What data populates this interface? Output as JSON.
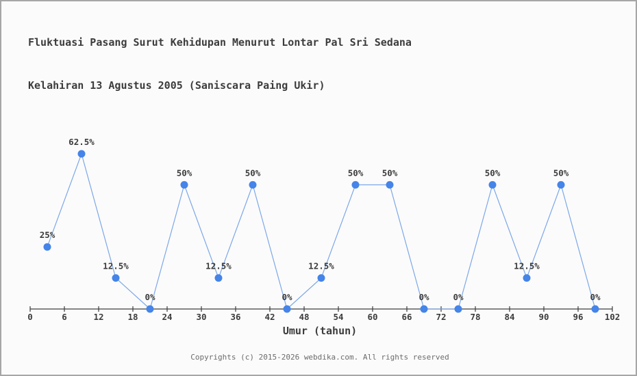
{
  "chart_data": {
    "type": "line",
    "title_line1": "Fluktuasi Pasang Surut Kehidupan Menurut Lontar Pal Sri Sedana",
    "title_line2": "Kelahiran 13 Agustus 2005 (Saniscara Paing Ukir)",
    "xlabel": "Umur (tahun)",
    "x": [
      3,
      9,
      15,
      21,
      27,
      33,
      39,
      45,
      51,
      57,
      63,
      69,
      75,
      81,
      87,
      93,
      99
    ],
    "values": [
      25,
      62.5,
      12.5,
      0,
      50,
      12.5,
      50,
      0,
      12.5,
      50,
      50,
      0,
      0,
      50,
      12.5,
      50,
      0
    ],
    "point_labels": [
      "25%",
      "62.5%",
      "12.5%",
      "0%",
      "50%",
      "12.5%",
      "50%",
      "0%",
      "12.5%",
      "50%",
      "50%",
      "0%",
      "0%",
      "50%",
      "12.5%",
      "50%",
      "0%"
    ],
    "x_ticks": [
      0,
      6,
      12,
      18,
      24,
      30,
      36,
      42,
      48,
      54,
      60,
      66,
      72,
      78,
      84,
      90,
      96,
      102
    ],
    "xlim": [
      0,
      102
    ],
    "ylim": [
      0,
      70
    ],
    "grid": false,
    "legend": false,
    "colors": {
      "marker": "#4584e8",
      "line": "#7ca7e8",
      "axis": "#3c3c3c",
      "label": "#3c3c3c"
    }
  },
  "footer": {
    "text": "Copyrights (c) 2015-2026 webdika.com. All rights reserved"
  }
}
